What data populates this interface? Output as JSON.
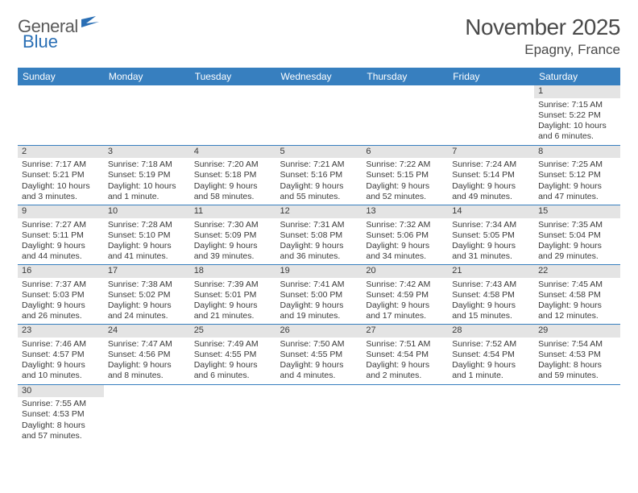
{
  "logo": {
    "text1": "General",
    "text2": "Blue"
  },
  "title": "November 2025",
  "subtitle": "Epagny, France",
  "colors": {
    "header_bg": "#377fbf",
    "header_text": "#ffffff",
    "daynum_bg": "#e4e4e4",
    "cell_border": "#377fbf",
    "text": "#3a3a3a"
  },
  "dayHeaders": [
    "Sunday",
    "Monday",
    "Tuesday",
    "Wednesday",
    "Thursday",
    "Friday",
    "Saturday"
  ],
  "weeks": [
    [
      null,
      null,
      null,
      null,
      null,
      null,
      {
        "n": "1",
        "sr": "7:15 AM",
        "ss": "5:22 PM",
        "dl": "10 hours and 6 minutes."
      }
    ],
    [
      {
        "n": "2",
        "sr": "7:17 AM",
        "ss": "5:21 PM",
        "dl": "10 hours and 3 minutes."
      },
      {
        "n": "3",
        "sr": "7:18 AM",
        "ss": "5:19 PM",
        "dl": "10 hours and 1 minute."
      },
      {
        "n": "4",
        "sr": "7:20 AM",
        "ss": "5:18 PM",
        "dl": "9 hours and 58 minutes."
      },
      {
        "n": "5",
        "sr": "7:21 AM",
        "ss": "5:16 PM",
        "dl": "9 hours and 55 minutes."
      },
      {
        "n": "6",
        "sr": "7:22 AM",
        "ss": "5:15 PM",
        "dl": "9 hours and 52 minutes."
      },
      {
        "n": "7",
        "sr": "7:24 AM",
        "ss": "5:14 PM",
        "dl": "9 hours and 49 minutes."
      },
      {
        "n": "8",
        "sr": "7:25 AM",
        "ss": "5:12 PM",
        "dl": "9 hours and 47 minutes."
      }
    ],
    [
      {
        "n": "9",
        "sr": "7:27 AM",
        "ss": "5:11 PM",
        "dl": "9 hours and 44 minutes."
      },
      {
        "n": "10",
        "sr": "7:28 AM",
        "ss": "5:10 PM",
        "dl": "9 hours and 41 minutes."
      },
      {
        "n": "11",
        "sr": "7:30 AM",
        "ss": "5:09 PM",
        "dl": "9 hours and 39 minutes."
      },
      {
        "n": "12",
        "sr": "7:31 AM",
        "ss": "5:08 PM",
        "dl": "9 hours and 36 minutes."
      },
      {
        "n": "13",
        "sr": "7:32 AM",
        "ss": "5:06 PM",
        "dl": "9 hours and 34 minutes."
      },
      {
        "n": "14",
        "sr": "7:34 AM",
        "ss": "5:05 PM",
        "dl": "9 hours and 31 minutes."
      },
      {
        "n": "15",
        "sr": "7:35 AM",
        "ss": "5:04 PM",
        "dl": "9 hours and 29 minutes."
      }
    ],
    [
      {
        "n": "16",
        "sr": "7:37 AM",
        "ss": "5:03 PM",
        "dl": "9 hours and 26 minutes."
      },
      {
        "n": "17",
        "sr": "7:38 AM",
        "ss": "5:02 PM",
        "dl": "9 hours and 24 minutes."
      },
      {
        "n": "18",
        "sr": "7:39 AM",
        "ss": "5:01 PM",
        "dl": "9 hours and 21 minutes."
      },
      {
        "n": "19",
        "sr": "7:41 AM",
        "ss": "5:00 PM",
        "dl": "9 hours and 19 minutes."
      },
      {
        "n": "20",
        "sr": "7:42 AM",
        "ss": "4:59 PM",
        "dl": "9 hours and 17 minutes."
      },
      {
        "n": "21",
        "sr": "7:43 AM",
        "ss": "4:58 PM",
        "dl": "9 hours and 15 minutes."
      },
      {
        "n": "22",
        "sr": "7:45 AM",
        "ss": "4:58 PM",
        "dl": "9 hours and 12 minutes."
      }
    ],
    [
      {
        "n": "23",
        "sr": "7:46 AM",
        "ss": "4:57 PM",
        "dl": "9 hours and 10 minutes."
      },
      {
        "n": "24",
        "sr": "7:47 AM",
        "ss": "4:56 PM",
        "dl": "9 hours and 8 minutes."
      },
      {
        "n": "25",
        "sr": "7:49 AM",
        "ss": "4:55 PM",
        "dl": "9 hours and 6 minutes."
      },
      {
        "n": "26",
        "sr": "7:50 AM",
        "ss": "4:55 PM",
        "dl": "9 hours and 4 minutes."
      },
      {
        "n": "27",
        "sr": "7:51 AM",
        "ss": "4:54 PM",
        "dl": "9 hours and 2 minutes."
      },
      {
        "n": "28",
        "sr": "7:52 AM",
        "ss": "4:54 PM",
        "dl": "9 hours and 1 minute."
      },
      {
        "n": "29",
        "sr": "7:54 AM",
        "ss": "4:53 PM",
        "dl": "8 hours and 59 minutes."
      }
    ],
    [
      {
        "n": "30",
        "sr": "7:55 AM",
        "ss": "4:53 PM",
        "dl": "8 hours and 57 minutes."
      },
      null,
      null,
      null,
      null,
      null,
      null
    ]
  ],
  "labels": {
    "sunrise": "Sunrise: ",
    "sunset": "Sunset: ",
    "daylight": "Daylight: "
  }
}
